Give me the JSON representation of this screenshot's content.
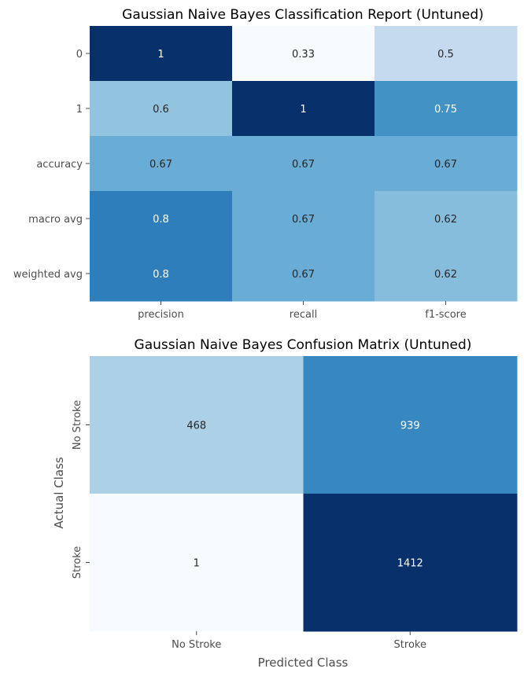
{
  "chart_data": [
    {
      "type": "heatmap",
      "title": "Gaussian Naive Bayes Classification Report (Untuned)",
      "rows": [
        "0",
        "1",
        "accuracy",
        "macro avg",
        "weighted avg"
      ],
      "columns": [
        "precision",
        "recall",
        "f1-score"
      ],
      "values": [
        [
          1,
          0.33,
          0.5
        ],
        [
          0.6,
          1,
          0.75
        ],
        [
          0.67,
          0.67,
          0.67
        ],
        [
          0.8,
          0.67,
          0.62
        ],
        [
          0.8,
          0.67,
          0.62
        ]
      ],
      "labels": [
        [
          "1",
          "0.33",
          "0.5"
        ],
        [
          "0.6",
          "1",
          "0.75"
        ],
        [
          "0.67",
          "0.67",
          "0.67"
        ],
        [
          "0.8",
          "0.67",
          "0.62"
        ],
        [
          "0.8",
          "0.67",
          "0.62"
        ]
      ],
      "colormap": "Blues",
      "colorbar": false,
      "xlabel": "",
      "ylabel": ""
    },
    {
      "type": "heatmap",
      "title": "Gaussian Naive Bayes Confusion Matrix (Untuned)",
      "rows": [
        "No Stroke",
        "Stroke"
      ],
      "columns": [
        "No Stroke",
        "Stroke"
      ],
      "values": [
        [
          468,
          939
        ],
        [
          1,
          1412
        ]
      ],
      "labels": [
        [
          "468",
          "939"
        ],
        [
          "1",
          "1412"
        ]
      ],
      "colormap": "Blues",
      "colorbar": false,
      "xlabel": "Predicted Class",
      "ylabel": "Actual Class"
    }
  ]
}
